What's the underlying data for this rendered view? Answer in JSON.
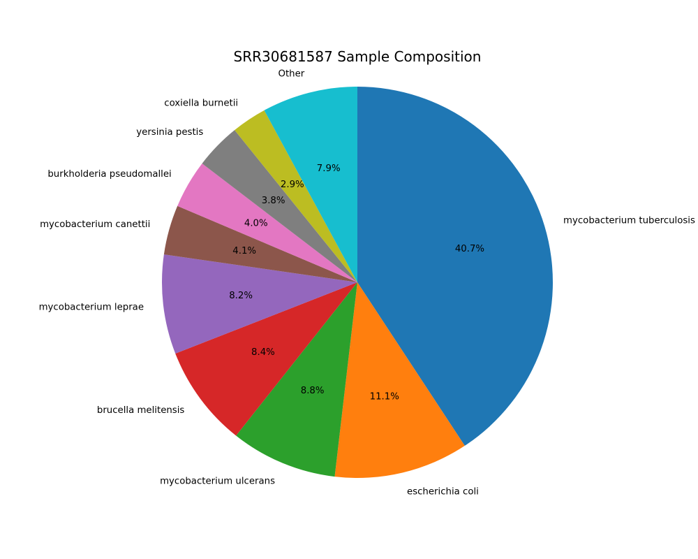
{
  "chart_data": {
    "type": "pie",
    "title": "SRR30681587 Sample Composition",
    "start_angle_deg": 90,
    "direction": "clockwise",
    "slices": [
      {
        "label": "mycobacterium tuberculosis",
        "value": 40.7,
        "pct_label": "40.7%",
        "color": "#1f77b4"
      },
      {
        "label": "escherichia coli",
        "value": 11.1,
        "pct_label": "11.1%",
        "color": "#ff7f0e"
      },
      {
        "label": "mycobacterium ulcerans",
        "value": 8.8,
        "pct_label": "8.8%",
        "color": "#2ca02c"
      },
      {
        "label": "brucella melitensis",
        "value": 8.4,
        "pct_label": "8.4%",
        "color": "#d62728"
      },
      {
        "label": "mycobacterium leprae",
        "value": 8.2,
        "pct_label": "8.2%",
        "color": "#9467bd"
      },
      {
        "label": "mycobacterium canettii",
        "value": 4.1,
        "pct_label": "4.1%",
        "color": "#8c564b"
      },
      {
        "label": "burkholderia pseudomallei",
        "value": 4.0,
        "pct_label": "4.0%",
        "color": "#e377c2"
      },
      {
        "label": "yersinia pestis",
        "value": 3.8,
        "pct_label": "3.8%",
        "color": "#7f7f7f"
      },
      {
        "label": "coxiella burnetii",
        "value": 2.9,
        "pct_label": "2.9%",
        "color": "#bcbd22"
      },
      {
        "label": "Other",
        "value": 7.9,
        "pct_label": "7.9%",
        "color": "#17becf"
      }
    ]
  }
}
